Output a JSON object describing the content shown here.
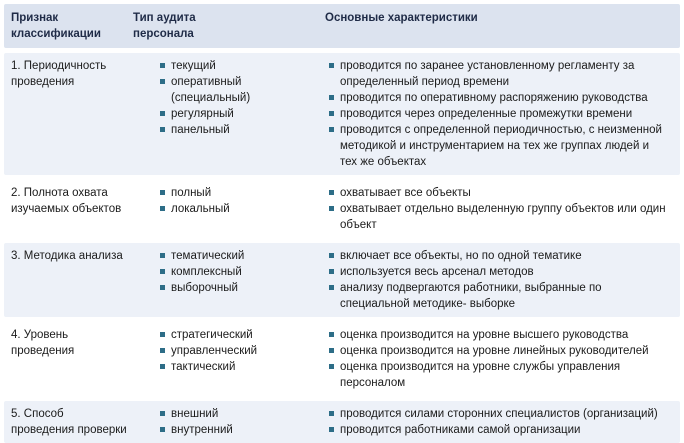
{
  "table": {
    "headers": {
      "feature": "Признак классификации",
      "audit_type": "Тип аудита персонала",
      "characteristics": "Основные характеристики"
    },
    "rows": [
      {
        "feature": "1. Периодичность проведения",
        "types": [
          "текущий",
          "оперативный (специальный)",
          "регулярный",
          "панельный"
        ],
        "characteristics": [
          "проводится по заранее установленному регламенту за определенный период времени",
          "проводится по оперативному распоряжению руководства",
          "проводится через определенные промежутки времени",
          "проводится с определенной периодичностью, с неизменной методикой и инструментарием на тех же группах людей и тех же объектах"
        ]
      },
      {
        "feature": "2. Полнота охвата изучаемых объектов",
        "types": [
          "полный",
          "локальный"
        ],
        "characteristics": [
          "охватывает все объекты",
          "охватывает отдельно выделенную группу объектов или один объект"
        ]
      },
      {
        "feature": "3. Методика анализа",
        "types": [
          "тематический",
          "комплексный",
          "выборочный"
        ],
        "characteristics": [
          "включает все объекты, но по одной тематике",
          "используется весь арсенал методов",
          "анализу подвергаются работники, выбранные по специальной методике- выборке"
        ]
      },
      {
        "feature": "4. Уровень проведения",
        "types": [
          "стратегический",
          "управленческий",
          "тактический"
        ],
        "characteristics": [
          "оценка производится на уровне высшего руководства",
          "оценка производится на уровне линейных руководителей",
          "оценка производится на уровне службы управления персоналом"
        ]
      },
      {
        "feature": "5. Способ проведения проверки",
        "types": [
          "внешний",
          "внутренний"
        ],
        "characteristics": [
          "проводится силами сторонних специалистов (организаций)",
          "проводится работниками самой организации"
        ]
      }
    ]
  },
  "colors": {
    "header_bg": "#dce3ef",
    "row_tint": "#edf1f8",
    "bullet": "#2d6d87",
    "text": "#1b1b1b",
    "header_text": "#1f2b47"
  }
}
